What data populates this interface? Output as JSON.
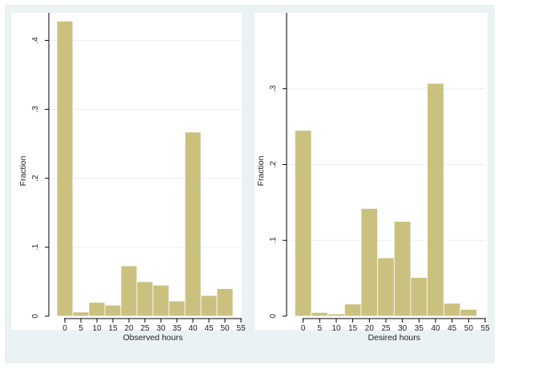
{
  "colors": {
    "outer_background": "#eaf2f3",
    "plot_background": "#ffffff",
    "bar_fill": "#cbc17f",
    "bar_stroke": "#ffffff",
    "axis": "#000000",
    "grid": "#e9eef2"
  },
  "chart_data": [
    {
      "type": "bar",
      "xlabel": "Observed hours",
      "ylabel": "Fraction",
      "x_ticks": [
        0,
        5,
        10,
        15,
        20,
        25,
        30,
        35,
        40,
        45,
        50,
        55
      ],
      "x_tick_labels": [
        "0",
        "5",
        "10",
        "15",
        "20",
        "25",
        "30",
        "35",
        "40",
        "45",
        "50",
        "55"
      ],
      "y_ticks": [
        0,
        0.1,
        0.2,
        0.3,
        0.4
      ],
      "y_tick_labels": [
        "0",
        ".1",
        ".2",
        ".3",
        ".4"
      ],
      "xlim": [
        -5,
        55
      ],
      "ylim": [
        0,
        0.44
      ],
      "bins": [
        {
          "x0": -2.5,
          "x1": 2.5,
          "value": 0.428
        },
        {
          "x0": 2.5,
          "x1": 7.5,
          "value": 0.006
        },
        {
          "x0": 7.5,
          "x1": 12.5,
          "value": 0.02
        },
        {
          "x0": 12.5,
          "x1": 17.5,
          "value": 0.016
        },
        {
          "x0": 17.5,
          "x1": 22.5,
          "value": 0.073
        },
        {
          "x0": 22.5,
          "x1": 27.5,
          "value": 0.05
        },
        {
          "x0": 27.5,
          "x1": 32.5,
          "value": 0.045
        },
        {
          "x0": 32.5,
          "x1": 37.5,
          "value": 0.022
        },
        {
          "x0": 37.5,
          "x1": 42.5,
          "value": 0.267
        },
        {
          "x0": 42.5,
          "x1": 47.5,
          "value": 0.03
        },
        {
          "x0": 47.5,
          "x1": 52.5,
          "value": 0.04
        }
      ],
      "grid": true
    },
    {
      "type": "bar",
      "xlabel": "Desired hours",
      "ylabel": "Fraction",
      "x_ticks": [
        0,
        5,
        10,
        15,
        20,
        25,
        30,
        35,
        40,
        45,
        50,
        55
      ],
      "x_tick_labels": [
        "0",
        "5",
        "10",
        "15",
        "20",
        "25",
        "30",
        "35",
        "40",
        "45",
        "50",
        "55"
      ],
      "y_ticks": [
        0,
        0.1,
        0.2,
        0.3
      ],
      "y_tick_labels": [
        "0",
        ".1",
        ".2",
        ".3"
      ],
      "xlim": [
        -5,
        55
      ],
      "ylim": [
        0,
        0.4
      ],
      "bins": [
        {
          "x0": -2.5,
          "x1": 2.5,
          "value": 0.245
        },
        {
          "x0": 2.5,
          "x1": 7.5,
          "value": 0.005
        },
        {
          "x0": 7.5,
          "x1": 12.5,
          "value": 0.003
        },
        {
          "x0": 12.5,
          "x1": 17.5,
          "value": 0.016
        },
        {
          "x0": 17.5,
          "x1": 22.5,
          "value": 0.142
        },
        {
          "x0": 22.5,
          "x1": 27.5,
          "value": 0.077
        },
        {
          "x0": 27.5,
          "x1": 32.5,
          "value": 0.125
        },
        {
          "x0": 32.5,
          "x1": 37.5,
          "value": 0.051
        },
        {
          "x0": 37.5,
          "x1": 42.5,
          "value": 0.307
        },
        {
          "x0": 42.5,
          "x1": 47.5,
          "value": 0.017
        },
        {
          "x0": 47.5,
          "x1": 52.5,
          "value": 0.009
        }
      ],
      "grid": true
    }
  ]
}
